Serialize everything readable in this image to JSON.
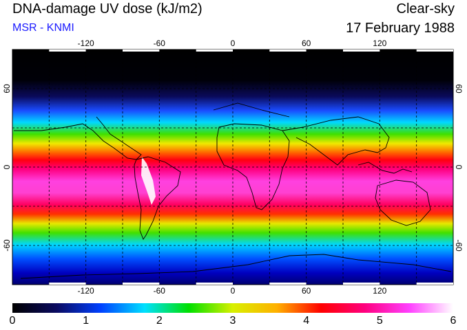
{
  "header": {
    "title": "DNA-damage UV dose (kJ/m2)",
    "subtitle": "MSR - KNMI",
    "condition": "Clear-sky",
    "date": "17 February 1988"
  },
  "map": {
    "longitude_labels": [
      "-120",
      "-60",
      "0",
      "60",
      "120"
    ],
    "longitude_values": [
      -120,
      -60,
      0,
      60,
      120
    ],
    "latitude_labels": [
      "60",
      "0",
      "-60"
    ],
    "latitude_values": [
      60,
      0,
      -60
    ],
    "lon_range": [
      -180,
      180
    ],
    "lat_range": [
      -90,
      90
    ],
    "gridlines": "dashed every 30 degrees"
  },
  "colorbar": {
    "labels": [
      "0",
      "1",
      "2",
      "3",
      "4",
      "5",
      "6"
    ],
    "min": 0,
    "max": 6,
    "colors": [
      "#000000",
      "#0a0a60",
      "#0040ff",
      "#00e0ff",
      "#00e000",
      "#d8f000",
      "#ffb000",
      "#ff0000",
      "#ff0080",
      "#ff40ff",
      "#ffffff"
    ]
  }
}
